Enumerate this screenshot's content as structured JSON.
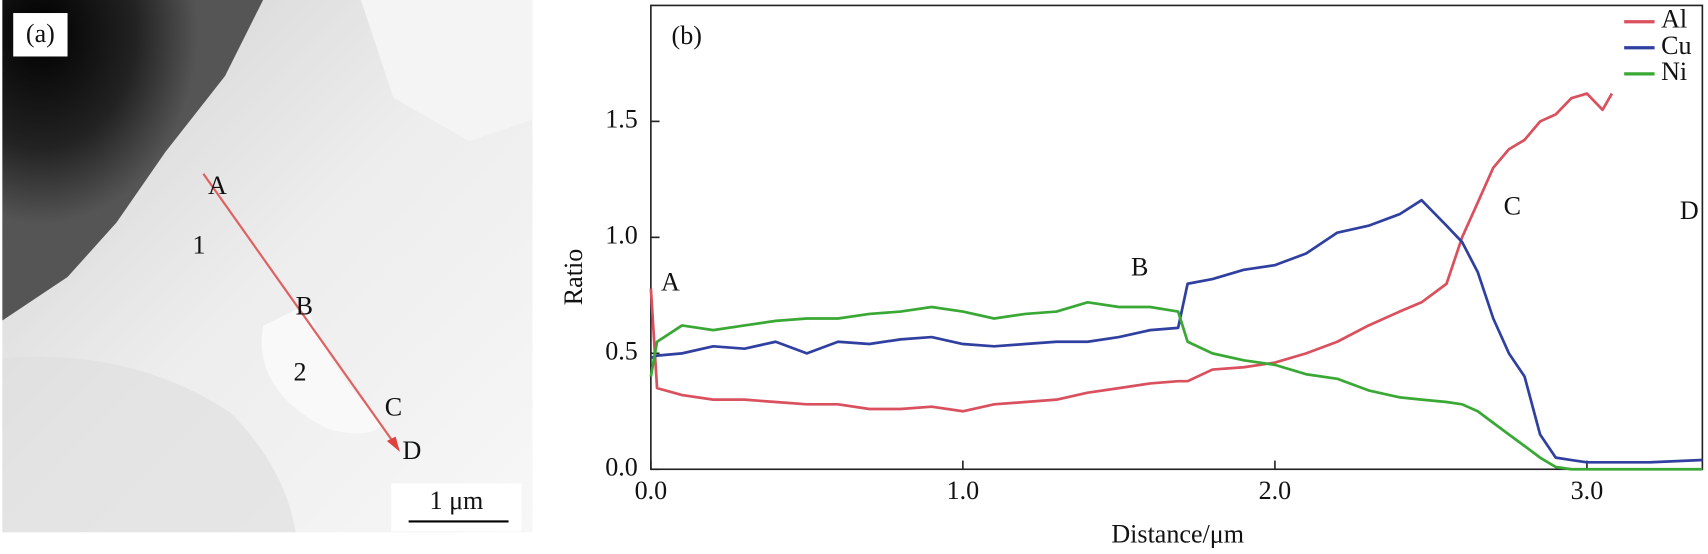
{
  "micrograph": {
    "panel_label": "(a)",
    "points": [
      "A",
      "B",
      "C",
      "D"
    ],
    "regions": [
      "1",
      "2"
    ],
    "scale_bar": "1 μm"
  },
  "chart_data": {
    "type": "line",
    "panel_label": "(b)",
    "x_label": "Distance/μm",
    "y_label": "Ratio",
    "annotations": [
      "A",
      "B",
      "C",
      "D"
    ],
    "x": [
      0,
      0.02,
      0.1,
      0.2,
      0.3,
      0.4,
      0.5,
      0.6,
      0.7,
      0.8,
      0.9,
      1.0,
      1.1,
      1.2,
      1.3,
      1.4,
      1.5,
      1.6,
      1.69,
      1.72,
      1.8,
      1.9,
      2.0,
      2.1,
      2.2,
      2.3,
      2.4,
      2.47,
      2.55,
      2.6,
      2.65,
      2.7,
      2.75,
      2.8,
      2.85,
      2.9,
      2.95,
      3.0,
      3.05,
      3.08,
      3.2,
      3.37
    ],
    "series": [
      {
        "name": "Al",
        "color": "#d9505e",
        "values": [
          0.78,
          0.35,
          0.32,
          0.3,
          0.3,
          0.29,
          0.28,
          0.28,
          0.26,
          0.26,
          0.27,
          0.25,
          0.28,
          0.29,
          0.3,
          0.33,
          0.35,
          0.37,
          0.38,
          0.38,
          0.43,
          0.44,
          0.46,
          0.5,
          0.55,
          0.62,
          0.68,
          0.72,
          0.8,
          1.0,
          1.15,
          1.3,
          1.38,
          1.42,
          1.5,
          1.53,
          1.6,
          1.62,
          1.55,
          1.62,
          null,
          null
        ]
      },
      {
        "name": "Cu",
        "color": "#3040a0",
        "values": [
          0.48,
          0.49,
          0.5,
          0.53,
          0.52,
          0.55,
          0.5,
          0.55,
          0.54,
          0.56,
          0.57,
          0.54,
          0.53,
          0.54,
          0.55,
          0.55,
          0.57,
          0.6,
          0.61,
          0.8,
          0.82,
          0.86,
          0.88,
          0.93,
          1.02,
          1.05,
          1.1,
          1.16,
          1.05,
          0.98,
          0.85,
          0.65,
          0.5,
          0.4,
          0.15,
          0.05,
          0.04,
          0.03,
          0.03,
          0.03,
          0.03,
          0.04
        ]
      },
      {
        "name": "Ni",
        "color": "#3aa835",
        "values": [
          0.4,
          0.55,
          0.62,
          0.6,
          0.62,
          0.64,
          0.65,
          0.65,
          0.67,
          0.68,
          0.7,
          0.68,
          0.65,
          0.67,
          0.68,
          0.72,
          0.7,
          0.7,
          0.68,
          0.55,
          0.5,
          0.47,
          0.45,
          0.41,
          0.39,
          0.34,
          0.31,
          0.3,
          0.29,
          0.28,
          0.25,
          0.2,
          0.15,
          0.1,
          0.05,
          0.01,
          0.0,
          0.0,
          0.0,
          0.0,
          0.0,
          0.0
        ]
      }
    ],
    "xlim": [
      0,
      3.37
    ],
    "ylim": [
      0,
      2.0
    ],
    "xticks": [
      {
        "value": 0,
        "label": "0.0"
      },
      {
        "value": 1,
        "label": "1.0"
      },
      {
        "value": 2,
        "label": "2.0"
      },
      {
        "value": 3,
        "label": "3.0"
      }
    ],
    "yticks": [
      {
        "value": 0,
        "label": "0.0"
      },
      {
        "value": 0.5,
        "label": "0.5"
      },
      {
        "value": 1,
        "label": "1.0"
      },
      {
        "value": 1.5,
        "label": "1.5"
      }
    ],
    "legend": "upper right"
  }
}
